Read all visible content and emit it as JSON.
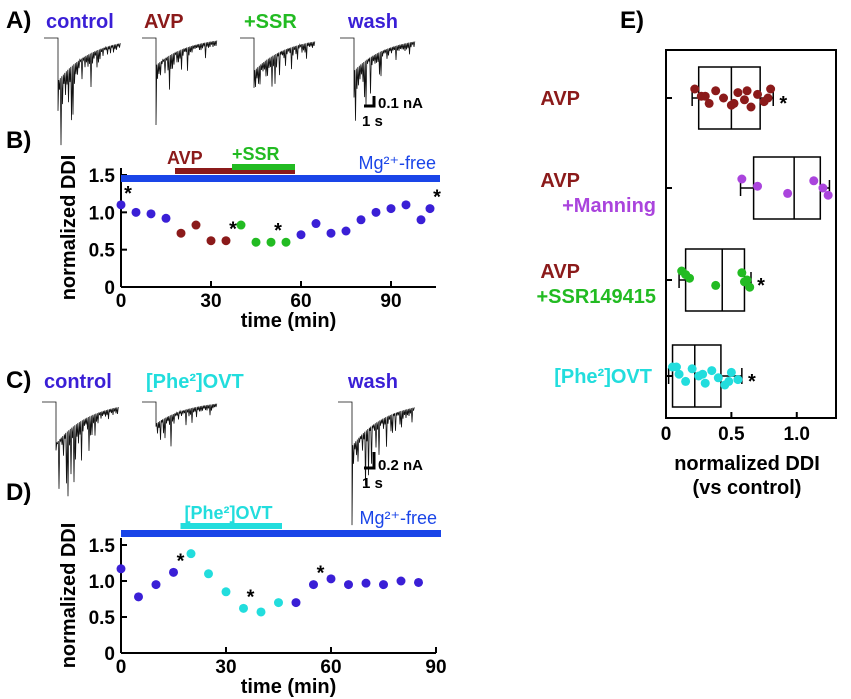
{
  "colors": {
    "control": "#3a1fd6",
    "avp": "#8b1a1a",
    "ssr": "#22bb22",
    "manning": "#aa44dd",
    "phe": "#22dddd",
    "mgbar": "#1a45e8",
    "black": "#000000"
  },
  "panelA": {
    "letter": "A)",
    "conditions": [
      "control",
      "AVP",
      "+SSR",
      "wash"
    ],
    "scale_current": "0.1 nA",
    "scale_time": "1 s"
  },
  "panelC": {
    "letter": "C)",
    "conditions": [
      "control",
      "[Phe²]OVT",
      "wash"
    ],
    "scale_current": "0.2 nA",
    "scale_time": "1 s"
  },
  "chart_data": [
    {
      "panel": "B)",
      "type": "scatter",
      "xlabel": "time (min)",
      "ylabel": "normalized DDI",
      "xlim": [
        0,
        105
      ],
      "ylim": [
        0,
        1.5
      ],
      "xticks": [
        "0",
        "30",
        "60",
        "90"
      ],
      "yticks": [
        "0",
        "0.5",
        "1.0",
        "1.5"
      ],
      "mg_label": "Mg²⁺-free",
      "bars": [
        {
          "label": "AVP",
          "start": 18,
          "end": 58,
          "color": "#8b1a1a"
        },
        {
          "label": "+SSR",
          "start": 37,
          "end": 58,
          "color": "#22bb22"
        }
      ],
      "points": [
        {
          "x": 0,
          "y": 1.1,
          "group": "control",
          "star": true
        },
        {
          "x": 5,
          "y": 1.0,
          "group": "control"
        },
        {
          "x": 10,
          "y": 0.98,
          "group": "control"
        },
        {
          "x": 15,
          "y": 0.92,
          "group": "control"
        },
        {
          "x": 20,
          "y": 0.72,
          "group": "avp"
        },
        {
          "x": 25,
          "y": 0.83,
          "group": "avp"
        },
        {
          "x": 30,
          "y": 0.62,
          "group": "avp"
        },
        {
          "x": 35,
          "y": 0.62,
          "group": "avp",
          "star": true
        },
        {
          "x": 40,
          "y": 0.83,
          "group": "ssr"
        },
        {
          "x": 45,
          "y": 0.6,
          "group": "ssr"
        },
        {
          "x": 50,
          "y": 0.6,
          "group": "ssr",
          "star": true
        },
        {
          "x": 55,
          "y": 0.6,
          "group": "ssr"
        },
        {
          "x": 60,
          "y": 0.7,
          "group": "control"
        },
        {
          "x": 65,
          "y": 0.85,
          "group": "control"
        },
        {
          "x": 70,
          "y": 0.72,
          "group": "control"
        },
        {
          "x": 75,
          "y": 0.75,
          "group": "control"
        },
        {
          "x": 80,
          "y": 0.9,
          "group": "control"
        },
        {
          "x": 85,
          "y": 1.0,
          "group": "control"
        },
        {
          "x": 90,
          "y": 1.05,
          "group": "control"
        },
        {
          "x": 95,
          "y": 1.1,
          "group": "control"
        },
        {
          "x": 100,
          "y": 0.9,
          "group": "control"
        },
        {
          "x": 103,
          "y": 1.05,
          "group": "control",
          "star": true
        }
      ]
    },
    {
      "panel": "D)",
      "type": "scatter",
      "xlabel": "time (min)",
      "ylabel": "normalized DDI",
      "xlim": [
        0,
        90
      ],
      "ylim": [
        0,
        1.5
      ],
      "xticks": [
        "0",
        "30",
        "60",
        "90"
      ],
      "yticks": [
        "0",
        "0.5",
        "1.0",
        "1.5"
      ],
      "mg_label": "Mg²⁺-free",
      "bars": [
        {
          "label": "[Phe²]OVT",
          "start": 17,
          "end": 46,
          "color": "#22dddd"
        }
      ],
      "points": [
        {
          "x": 0,
          "y": 1.17,
          "group": "control"
        },
        {
          "x": 5,
          "y": 0.78,
          "group": "control"
        },
        {
          "x": 10,
          "y": 0.95,
          "group": "control"
        },
        {
          "x": 15,
          "y": 1.12,
          "group": "control",
          "star": true
        },
        {
          "x": 20,
          "y": 1.38,
          "group": "phe"
        },
        {
          "x": 25,
          "y": 1.1,
          "group": "phe"
        },
        {
          "x": 30,
          "y": 0.85,
          "group": "phe"
        },
        {
          "x": 35,
          "y": 0.62,
          "group": "phe",
          "star": true
        },
        {
          "x": 40,
          "y": 0.57,
          "group": "phe"
        },
        {
          "x": 45,
          "y": 0.7,
          "group": "phe"
        },
        {
          "x": 50,
          "y": 0.7,
          "group": "control"
        },
        {
          "x": 55,
          "y": 0.95,
          "group": "control",
          "star": true
        },
        {
          "x": 60,
          "y": 1.03,
          "group": "control"
        },
        {
          "x": 65,
          "y": 0.95,
          "group": "control"
        },
        {
          "x": 70,
          "y": 0.97,
          "group": "control"
        },
        {
          "x": 75,
          "y": 0.95,
          "group": "control"
        },
        {
          "x": 80,
          "y": 1.0,
          "group": "control"
        },
        {
          "x": 85,
          "y": 0.98,
          "group": "control"
        }
      ]
    },
    {
      "panel": "E)",
      "type": "box",
      "xlabel": "normalized DDI",
      "xlabel2": "(vs control)",
      "xlim": [
        0,
        1.3
      ],
      "xticks": [
        "0",
        "0.5",
        "1.0"
      ],
      "groups": [
        {
          "lines": [
            "AVP"
          ],
          "colors": [
            "#8b1a1a"
          ],
          "whisker": [
            0.2,
            0.82
          ],
          "q1": 0.25,
          "median": 0.5,
          "q3": 0.72,
          "points": [
            0.22,
            0.27,
            0.33,
            0.38,
            0.44,
            0.5,
            0.55,
            0.6,
            0.65,
            0.7,
            0.75,
            0.8,
            0.3,
            0.52,
            0.62,
            0.78
          ],
          "star": true
        },
        {
          "lines": [
            "AVP",
            "+Manning"
          ],
          "colors": [
            "#8b1a1a",
            "#aa44dd"
          ],
          "whisker": [
            0.57,
            1.25
          ],
          "q1": 0.67,
          "median": 0.98,
          "q3": 1.18,
          "points": [
            0.58,
            0.7,
            0.93,
            1.13,
            1.2,
            1.24
          ],
          "star": false
        },
        {
          "lines": [
            "AVP",
            "+SSR149415"
          ],
          "colors": [
            "#8b1a1a",
            "#22bb22"
          ],
          "whisker": [
            0.1,
            0.65
          ],
          "q1": 0.15,
          "median": 0.43,
          "q3": 0.6,
          "points": [
            0.12,
            0.18,
            0.38,
            0.58,
            0.62,
            0.64,
            0.15,
            0.6
          ],
          "star": true
        },
        {
          "lines": [
            "[Phe²]OVT"
          ],
          "colors": [
            "#22dddd"
          ],
          "whisker": [
            0.02,
            0.58
          ],
          "q1": 0.05,
          "median": 0.22,
          "q3": 0.42,
          "points": [
            0.05,
            0.1,
            0.15,
            0.2,
            0.25,
            0.3,
            0.35,
            0.4,
            0.45,
            0.5,
            0.55,
            0.08,
            0.28,
            0.48
          ],
          "star": true
        }
      ]
    }
  ]
}
